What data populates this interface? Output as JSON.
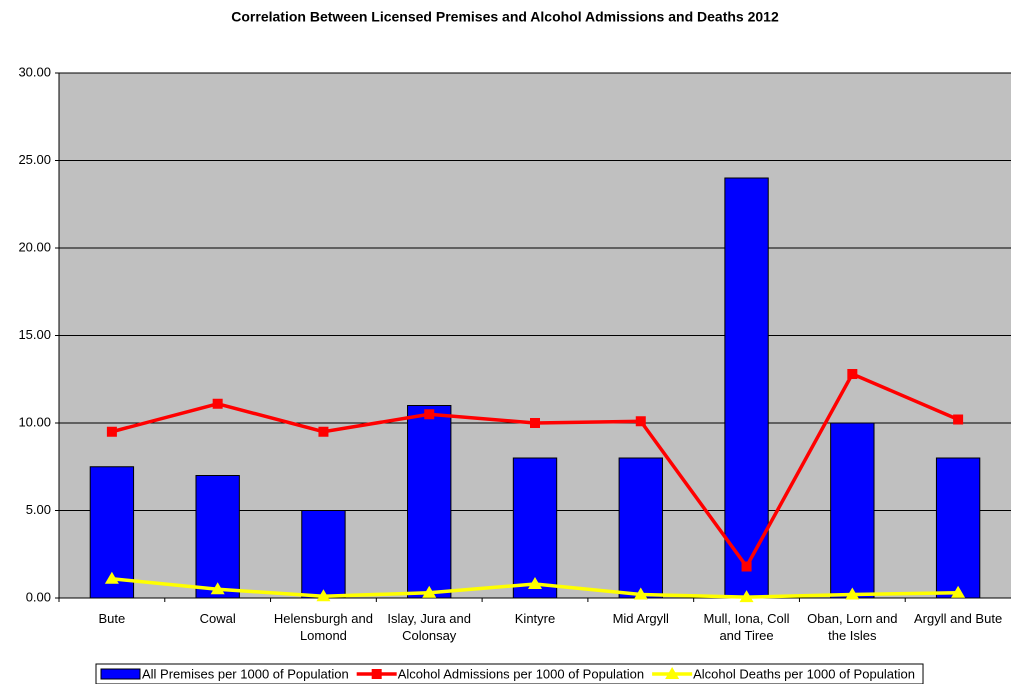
{
  "chart_data": {
    "type": "bar",
    "title": "Correlation Between Licensed Premises and Alcohol Admissions and Deaths 2012",
    "categories": [
      "Bute",
      "Cowal",
      "Helensburgh and Lomond",
      "Islay, Jura and Colonsay",
      "Kintyre",
      "Mid Argyll",
      "Mull, Iona, Coll and Tiree",
      "Oban, Lorn and the Isles",
      "Argyll and Bute"
    ],
    "series": [
      {
        "name": "All Premises per 1000 of Population",
        "type": "bar",
        "color": "#0000ff",
        "values": [
          7.5,
          7,
          5,
          11,
          8,
          8,
          24,
          10,
          8
        ]
      },
      {
        "name": "Alcohol Admissions per 1000 of Population",
        "type": "line",
        "marker": "square",
        "color": "#ff0000",
        "values": [
          9.5,
          11.1,
          9.5,
          10.5,
          10,
          10.1,
          1.8,
          12.8,
          10.2
        ]
      },
      {
        "name": "Alcohol Deaths per 1000 of Population",
        "type": "line",
        "marker": "triangle",
        "color": "#ffff00",
        "values": [
          1.1,
          0.5,
          0.1,
          0.3,
          0.8,
          0.2,
          0.05,
          0.2,
          0.3
        ]
      }
    ],
    "ylim": [
      0,
      30
    ],
    "yticks": [
      {
        "value": 0,
        "label": "0.00"
      },
      {
        "value": 5,
        "label": "5.00"
      },
      {
        "value": 10,
        "label": "10.00"
      },
      {
        "value": 15,
        "label": "15.00"
      },
      {
        "value": 20,
        "label": "20.00"
      },
      {
        "value": 25,
        "label": "25.00"
      },
      {
        "value": 30,
        "label": "30.00"
      }
    ],
    "grid": true,
    "plot_background": "#c0c0c0",
    "legend": "bottom"
  }
}
